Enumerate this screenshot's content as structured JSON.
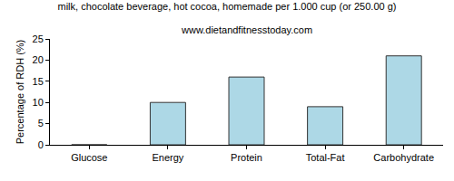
{
  "chart_data": {
    "type": "bar",
    "title": "milk, chocolate beverage, hot cocoa, homemade per 1.000 cup (or 250.00 g)",
    "subtitle": "www.dietandfitnesstoday.com",
    "y_label": "Percentage of RDH (%)",
    "categories": [
      "Glucose",
      "Energy",
      "Protein",
      "Total-Fat",
      "Carbohydrate"
    ],
    "values": [
      0,
      10,
      16,
      9,
      21
    ],
    "color": "#add8e6",
    "ylim": [
      0,
      25
    ],
    "yticks": [
      0,
      5,
      10,
      15,
      20,
      25
    ],
    "grid": false
  }
}
